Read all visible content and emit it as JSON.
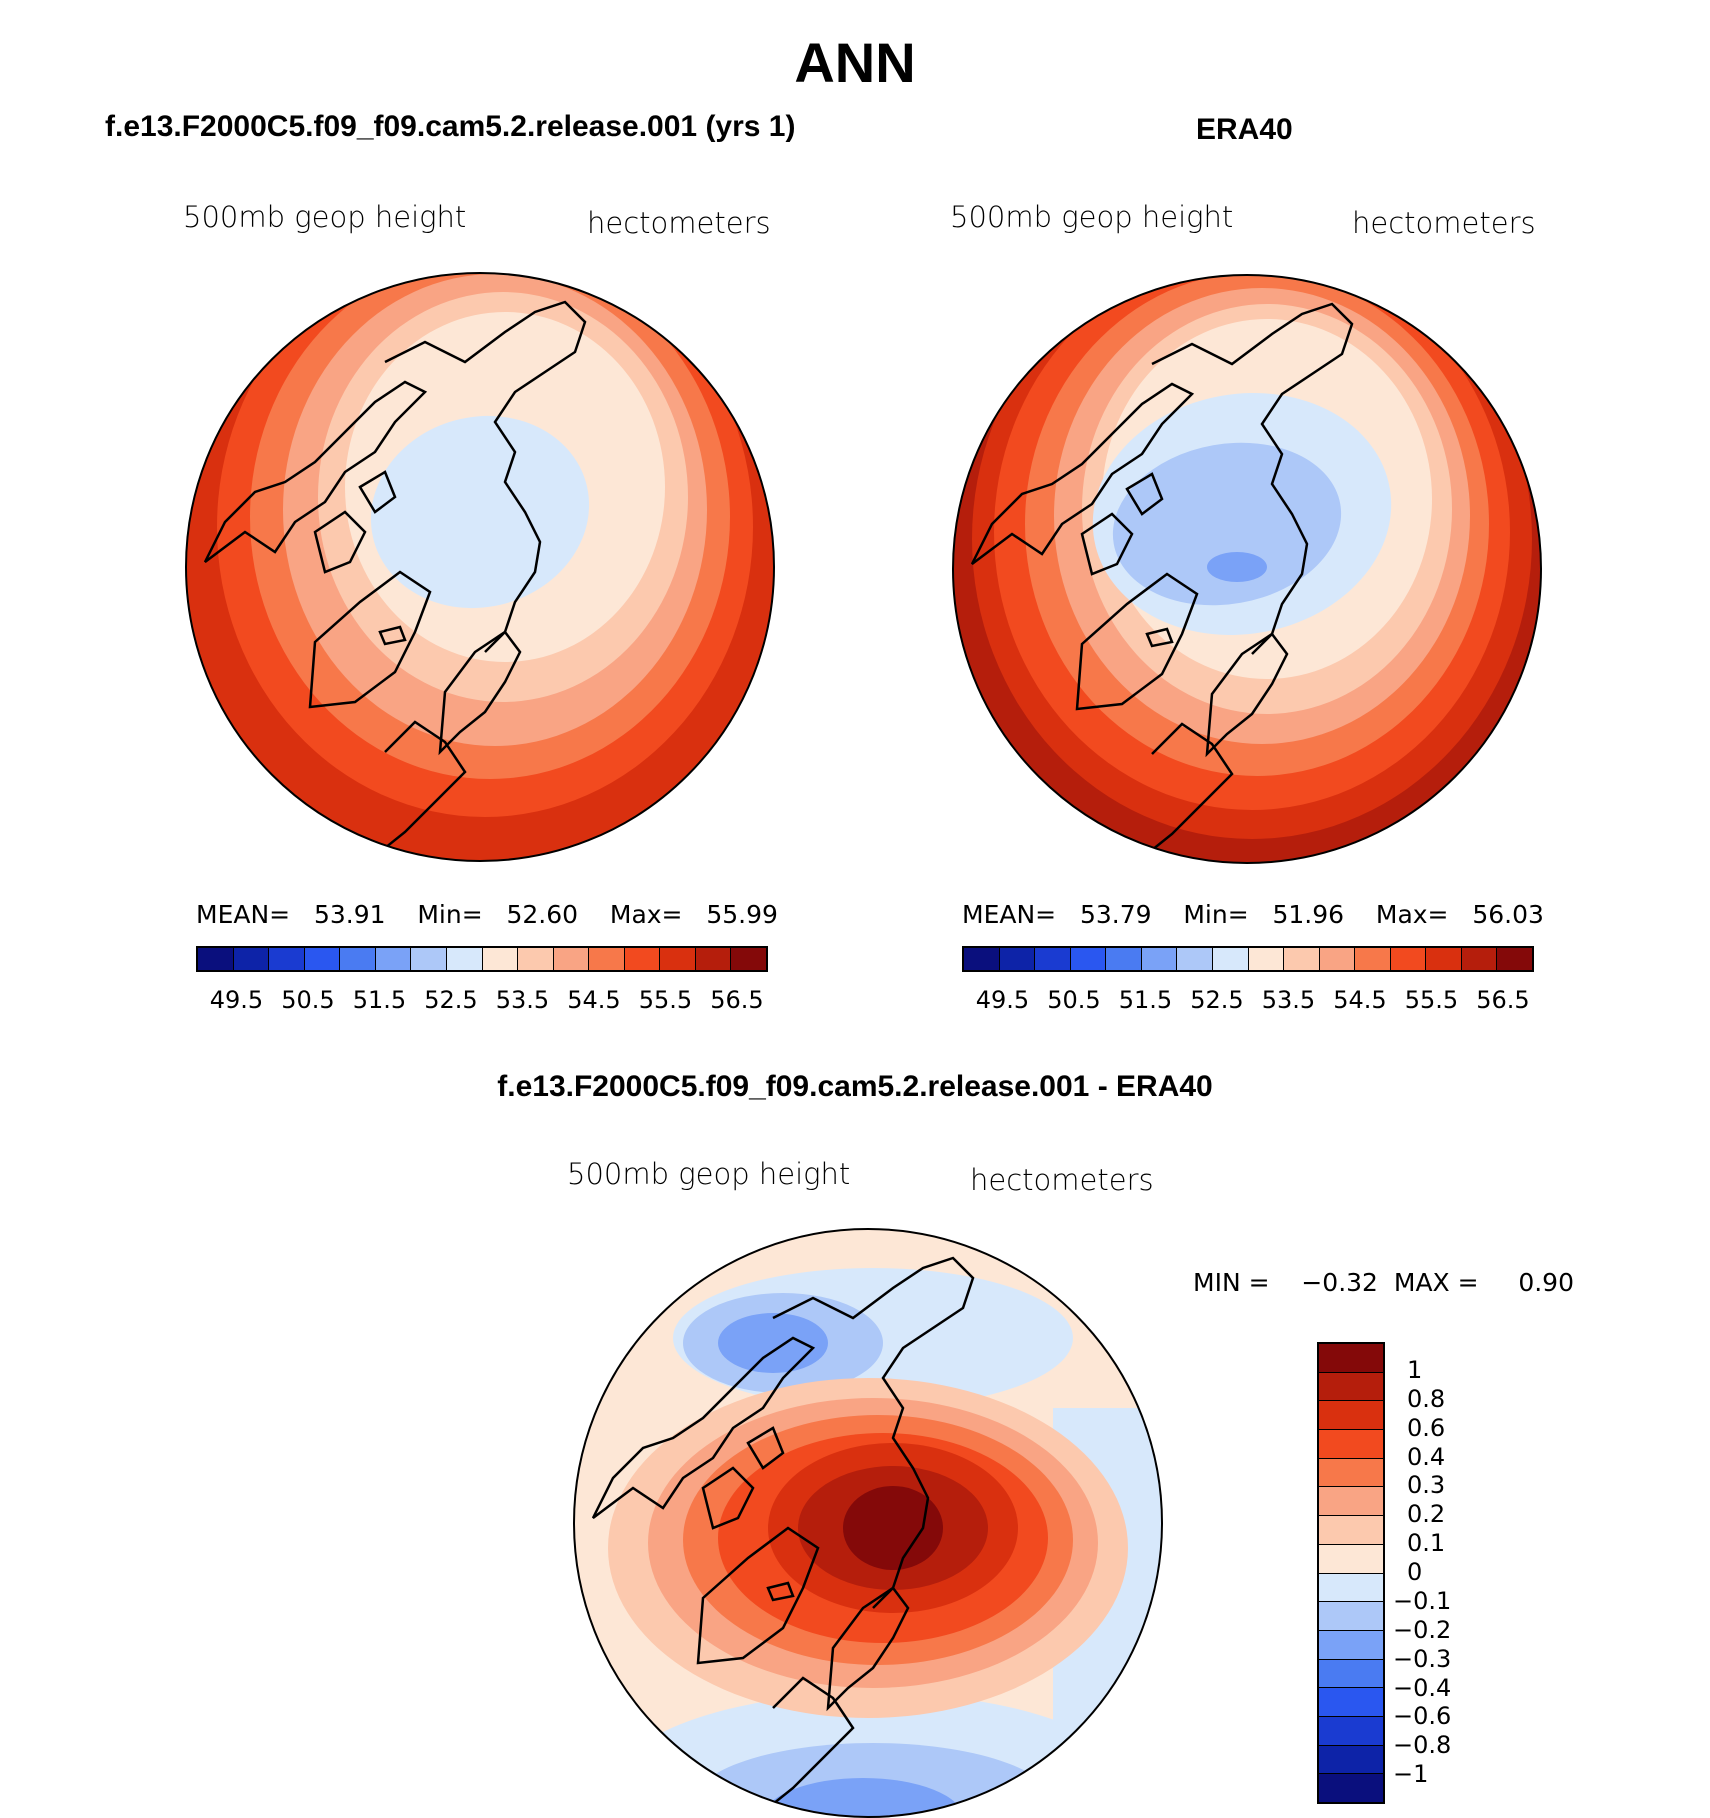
{
  "figure": {
    "title": "ANN",
    "panel_left": {
      "case_title": "f.e13.F2000C5.f09_f09.cam5.2.release.001 (yrs 1)",
      "variable": "500mb geop height",
      "units": "hectometers",
      "stats": {
        "mean_label": "MEAN=",
        "mean": "53.91",
        "min_label": "Min=",
        "min": "52.60",
        "max_label": "Max=",
        "max": "55.99"
      }
    },
    "panel_right": {
      "case_title": "ERA40",
      "variable": "500mb geop height",
      "units": "hectometers",
      "stats": {
        "mean_label": "MEAN=",
        "mean": "53.79",
        "min_label": "Min=",
        "min": "51.96",
        "max_label": "Max=",
        "max": "56.03"
      }
    },
    "panel_diff": {
      "case_title": "f.e13.F2000C5.f09_f09.cam5.2.release.001 - ERA40",
      "variable": "500mb geop height",
      "units": "hectometers",
      "stats": {
        "min_label": "MIN =",
        "min": "−0.32",
        "max_label": "MAX =",
        "max": "0.90"
      }
    }
  },
  "colorbar_abs": {
    "colors": [
      "#0a0f7d",
      "#0d23a8",
      "#1a3bd1",
      "#2a57f0",
      "#4a7bf2",
      "#7aa2f7",
      "#adc8f8",
      "#d7e8fb",
      "#fde7d6",
      "#fcc9ae",
      "#f9a484",
      "#f7784a",
      "#f24a1f",
      "#d9300f",
      "#b51e0c",
      "#840909"
    ],
    "tick_labels": [
      "49.5",
      "50.5",
      "51.5",
      "52.5",
      "53.5",
      "54.5",
      "55.5",
      "56.5"
    ]
  },
  "colorbar_diff": {
    "colors": [
      "#840909",
      "#b51e0c",
      "#d9300f",
      "#f24a1f",
      "#f7784a",
      "#f9a484",
      "#fcc9ae",
      "#fde7d6",
      "#d7e8fb",
      "#adc8f8",
      "#7aa2f7",
      "#4a7bf2",
      "#2a57f0",
      "#1a3bd1",
      "#0d23a8",
      "#0a0f7d"
    ],
    "tick_labels": [
      "1",
      "0.8",
      "0.6",
      "0.4",
      "0.3",
      "0.2",
      "0.1",
      "0",
      "−0.1",
      "−0.2",
      "−0.3",
      "−0.4",
      "−0.6",
      "−0.8",
      "−1"
    ]
  }
}
